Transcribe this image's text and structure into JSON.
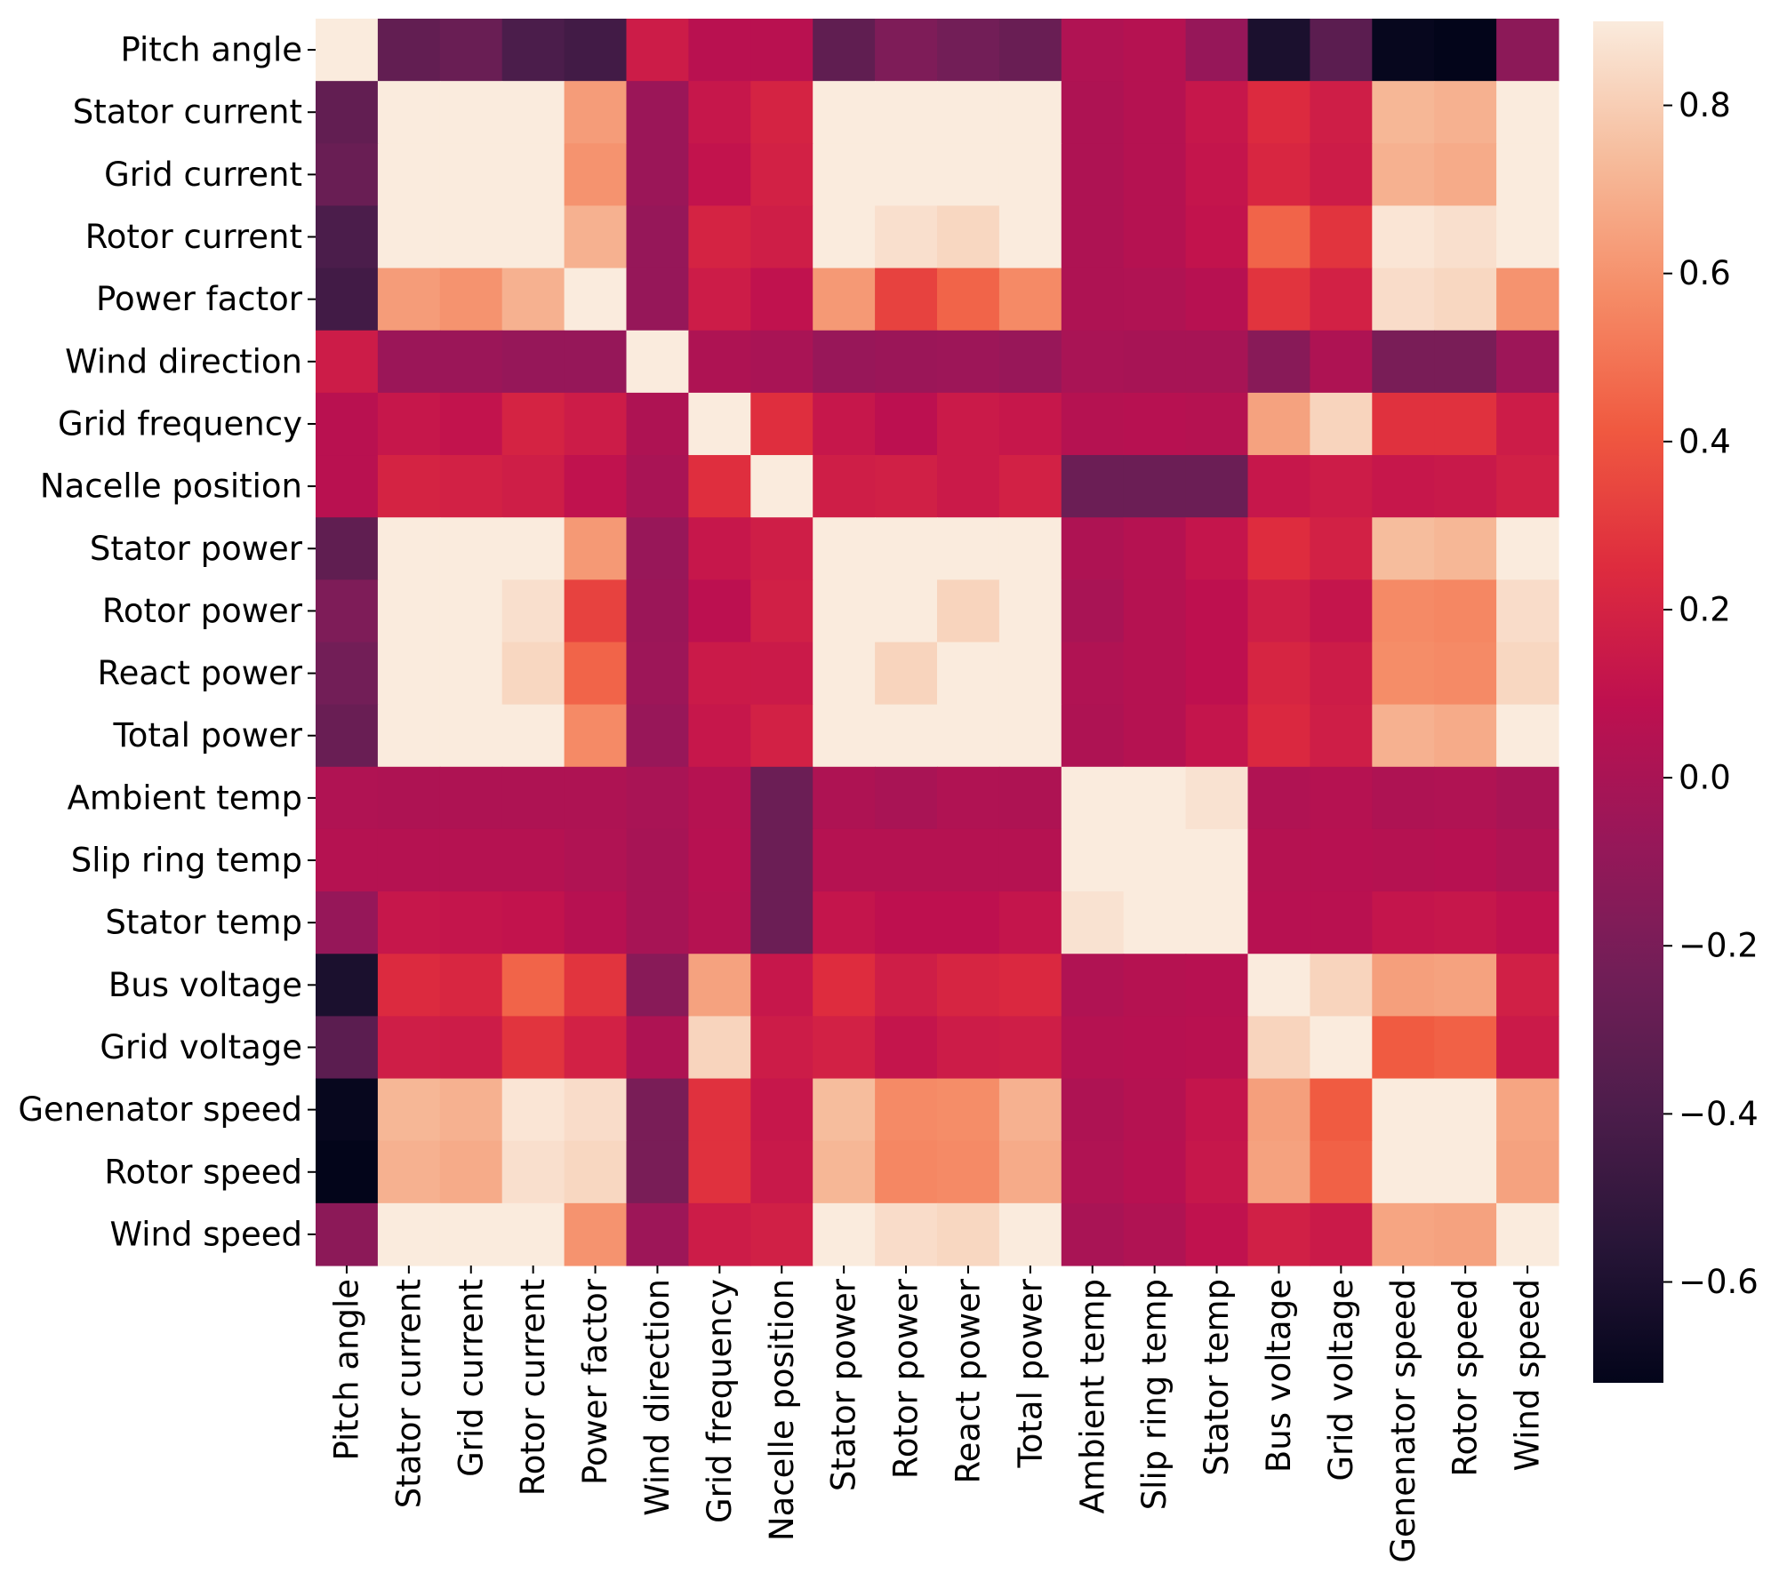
{
  "chart_data": {
    "type": "heatmap",
    "title": "",
    "xlabel": "",
    "ylabel": "",
    "variables": [
      "Pitch angle",
      "Stator current",
      "Grid current",
      "Rotor current",
      "Power factor",
      "Wind direction",
      "Grid frequency",
      "Nacelle position",
      "Stator power",
      "Rotor power",
      "React power",
      "Total power",
      "Ambient temp",
      "Slip ring temp",
      "Stator temp",
      "Bus voltage",
      "Grid voltage",
      "Genenator speed",
      "Rotor speed",
      "Wind speed"
    ],
    "matrix": [
      [
        1.0,
        -0.3,
        -0.27,
        -0.4,
        -0.44,
        0.16,
        0.07,
        0.07,
        -0.31,
        -0.18,
        -0.23,
        -0.27,
        0.03,
        0.05,
        -0.08,
        -0.61,
        -0.33,
        -0.7,
        -0.72,
        -0.12
      ],
      [
        -0.3,
        1.0,
        0.99,
        0.96,
        0.63,
        -0.06,
        0.13,
        0.2,
        0.98,
        0.94,
        0.91,
        0.97,
        0.02,
        0.05,
        0.13,
        0.24,
        0.17,
        0.72,
        0.7,
        0.93
      ],
      [
        -0.27,
        0.99,
        1.0,
        0.97,
        0.6,
        -0.06,
        0.11,
        0.19,
        0.98,
        0.94,
        0.9,
        0.97,
        0.02,
        0.05,
        0.12,
        0.22,
        0.16,
        0.7,
        0.68,
        0.93
      ],
      [
        -0.4,
        0.96,
        0.97,
        1.0,
        0.7,
        -0.08,
        0.2,
        0.17,
        0.95,
        0.86,
        0.83,
        0.93,
        0.02,
        0.05,
        0.11,
        0.45,
        0.28,
        0.88,
        0.86,
        0.9
      ],
      [
        -0.44,
        0.63,
        0.6,
        0.7,
        1.0,
        -0.08,
        0.16,
        0.1,
        0.62,
        0.33,
        0.45,
        0.57,
        0.02,
        0.03,
        0.06,
        0.28,
        0.19,
        0.85,
        0.83,
        0.6
      ],
      [
        0.16,
        -0.06,
        -0.06,
        -0.08,
        -0.08,
        1.0,
        0.02,
        0.0,
        -0.07,
        -0.06,
        -0.05,
        -0.07,
        0.0,
        -0.01,
        -0.01,
        -0.14,
        0.02,
        -0.2,
        -0.2,
        -0.05
      ],
      [
        0.07,
        0.13,
        0.11,
        0.2,
        0.16,
        0.02,
        1.0,
        0.26,
        0.13,
        0.08,
        0.15,
        0.13,
        0.05,
        0.06,
        0.05,
        0.65,
        0.82,
        0.27,
        0.27,
        0.16
      ],
      [
        0.07,
        0.2,
        0.19,
        0.17,
        0.1,
        0.0,
        0.26,
        1.0,
        0.17,
        0.18,
        0.15,
        0.19,
        -0.26,
        -0.26,
        -0.26,
        0.13,
        0.16,
        0.13,
        0.14,
        0.18
      ],
      [
        -0.31,
        0.98,
        0.98,
        0.95,
        0.62,
        -0.07,
        0.13,
        0.17,
        1.0,
        0.95,
        0.92,
        0.97,
        0.02,
        0.05,
        0.12,
        0.25,
        0.19,
        0.74,
        0.72,
        0.94
      ],
      [
        -0.18,
        0.94,
        0.94,
        0.86,
        0.33,
        -0.06,
        0.08,
        0.18,
        0.95,
        1.0,
        0.82,
        0.95,
        0.0,
        0.05,
        0.09,
        0.17,
        0.12,
        0.57,
        0.56,
        0.85
      ],
      [
        -0.23,
        0.91,
        0.9,
        0.83,
        0.45,
        -0.05,
        0.15,
        0.15,
        0.92,
        0.82,
        1.0,
        0.92,
        0.03,
        0.05,
        0.09,
        0.21,
        0.16,
        0.58,
        0.57,
        0.83
      ],
      [
        -0.27,
        0.97,
        0.97,
        0.93,
        0.57,
        -0.07,
        0.13,
        0.19,
        0.97,
        0.95,
        0.92,
        1.0,
        0.02,
        0.05,
        0.12,
        0.23,
        0.17,
        0.7,
        0.68,
        0.93
      ],
      [
        0.03,
        0.02,
        0.02,
        0.02,
        0.02,
        0.0,
        0.05,
        -0.26,
        0.02,
        0.0,
        0.03,
        0.02,
        1.0,
        0.97,
        0.87,
        0.03,
        0.05,
        0.02,
        0.03,
        0.0
      ],
      [
        0.05,
        0.05,
        0.05,
        0.05,
        0.03,
        -0.01,
        0.06,
        -0.26,
        0.05,
        0.05,
        0.05,
        0.05,
        0.97,
        1.0,
        0.96,
        0.05,
        0.06,
        0.05,
        0.06,
        0.03
      ],
      [
        -0.08,
        0.13,
        0.12,
        0.11,
        0.06,
        -0.01,
        0.05,
        -0.26,
        0.12,
        0.09,
        0.09,
        0.12,
        0.87,
        0.96,
        1.0,
        0.06,
        0.07,
        0.12,
        0.13,
        0.1
      ],
      [
        -0.61,
        0.24,
        0.22,
        0.45,
        0.28,
        -0.14,
        0.65,
        0.13,
        0.25,
        0.17,
        0.21,
        0.23,
        0.03,
        0.05,
        0.06,
        1.0,
        0.82,
        0.64,
        0.65,
        0.18
      ],
      [
        -0.33,
        0.17,
        0.16,
        0.28,
        0.19,
        0.02,
        0.82,
        0.16,
        0.19,
        0.12,
        0.16,
        0.17,
        0.05,
        0.06,
        0.07,
        0.82,
        1.0,
        0.42,
        0.44,
        0.15
      ],
      [
        -0.7,
        0.72,
        0.7,
        0.88,
        0.85,
        -0.2,
        0.27,
        0.13,
        0.74,
        0.57,
        0.58,
        0.7,
        0.02,
        0.05,
        0.12,
        0.64,
        0.42,
        1.0,
        0.99,
        0.66
      ],
      [
        -0.72,
        0.7,
        0.68,
        0.86,
        0.83,
        -0.2,
        0.27,
        0.14,
        0.72,
        0.56,
        0.57,
        0.68,
        0.03,
        0.06,
        0.13,
        0.65,
        0.44,
        0.99,
        1.0,
        0.65
      ],
      [
        -0.12,
        0.93,
        0.93,
        0.9,
        0.6,
        -0.05,
        0.16,
        0.18,
        0.94,
        0.85,
        0.83,
        0.93,
        0.0,
        0.03,
        0.1,
        0.18,
        0.15,
        0.66,
        0.65,
        1.0
      ]
    ],
    "colorbar": {
      "vmin": -0.72,
      "vmax": 0.9,
      "ticks": [
        0.8,
        0.6,
        0.4,
        0.2,
        0.0,
        -0.2,
        -0.4,
        -0.6
      ],
      "tick_labels": [
        "0.8",
        "0.6",
        "0.4",
        "0.2",
        "0.0",
        "−0.2",
        "−0.4",
        "−0.6"
      ],
      "colormap": "rocket"
    }
  }
}
